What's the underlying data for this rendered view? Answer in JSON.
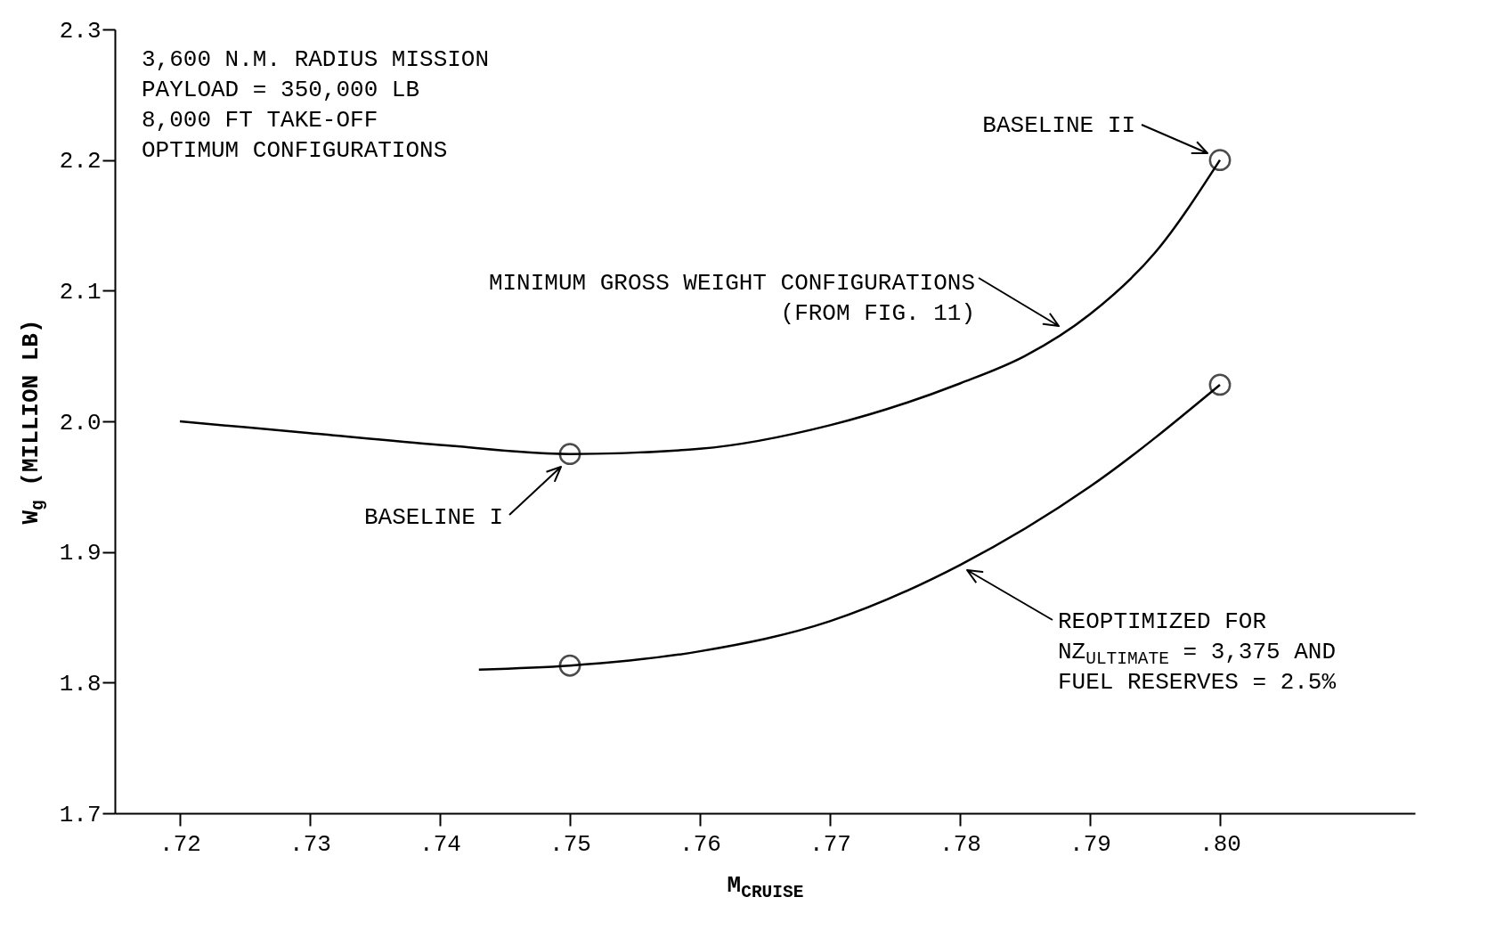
{
  "chart_data": {
    "type": "line",
    "xlabel": "M$_{CRUISE}$",
    "ylabel": "W$_{g}$ (MILLION LB)",
    "xlim": [
      0.715,
      0.815
    ],
    "ylim": [
      1.7,
      2.3
    ],
    "xticks": [
      {
        "value": 0.72,
        "label": ".72"
      },
      {
        "value": 0.73,
        "label": ".73"
      },
      {
        "value": 0.74,
        "label": ".74"
      },
      {
        "value": 0.75,
        "label": ".75"
      },
      {
        "value": 0.76,
        "label": ".76"
      },
      {
        "value": 0.77,
        "label": ".77"
      },
      {
        "value": 0.78,
        "label": ".78"
      },
      {
        "value": 0.79,
        "label": ".79"
      },
      {
        "value": 0.8,
        "label": ".80"
      }
    ],
    "yticks": [
      1.7,
      1.8,
      1.9,
      {
        "value": 2.0,
        "label": "2.0"
      },
      2.1,
      2.2,
      2.3
    ],
    "grid": false,
    "line_style": "solid",
    "series": [
      {
        "color": "#000000",
        "x": [
          0.72,
          0.73,
          0.74,
          0.75,
          0.76,
          0.77,
          0.78,
          0.785,
          0.79,
          0.795,
          0.8
        ],
        "values": [
          2.0,
          1.991,
          1.982,
          1.975,
          1.979,
          1.997,
          2.029,
          2.05,
          2.082,
          2.129,
          2.2
        ]
      },
      {
        "color": "#000000",
        "x": [
          0.743,
          0.75,
          0.76,
          0.77,
          0.78,
          0.79,
          0.8
        ],
        "values": [
          1.81,
          1.813,
          1.824,
          1.847,
          1.89,
          1.95,
          2.028
        ]
      },
      {
        "type": "scatter",
        "color": "#000000",
        "marker": "circle",
        "x": [
          0.75,
          0.8,
          0.75,
          0.8
        ],
        "values": [
          1.975,
          2.2,
          1.813,
          2.028
        ]
      }
    ],
    "annotations": [
      "3,600 N.M. RADIUS MISSION",
      "PAYLOAD = 350,000 LB",
      "8,000 FT TAKE-OFF",
      "OPTIMUM CONFIGURATIONS",
      "BASELINE II",
      "BASELINE I",
      "MINIMUM GROSS WEIGHT CONFIGURATIONS (FROM FIG. 11)",
      "REOPTIMIZED FOR NZ$_{ULTIMATE}$ = 3,375 AND FUEL RESERVES = 2.5%"
    ]
  }
}
